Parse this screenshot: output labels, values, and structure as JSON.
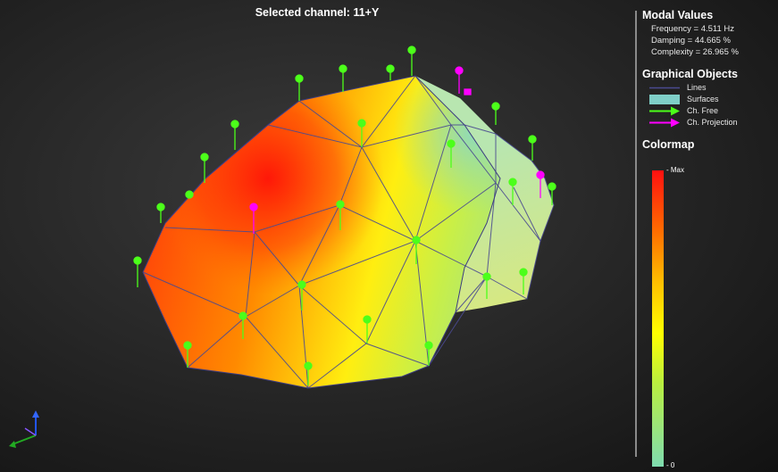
{
  "viewer": {
    "title": "Selected channel: 11+Y"
  },
  "modal_values": {
    "heading": "Modal Values",
    "frequency": "Frequency = 4.511 Hz",
    "damping": "Damping = 44.665 %",
    "complexity": "Complexity = 26.965 %"
  },
  "graphical_objects": {
    "heading": "Graphical Objects",
    "lines": "Lines",
    "surfaces": "Surfaces",
    "ch_free": "Ch. Free",
    "ch_projection": "Ch. Projection"
  },
  "colormap": {
    "heading": "Colormap",
    "max_label": "- Max",
    "min_label": "- 0"
  },
  "colors": {
    "ch_free": "#4cff1a",
    "ch_projection": "#ff00ff",
    "lines": "#4a4a90",
    "surface_legend": "#7fcfc8",
    "axis_x": "#22aa22",
    "axis_y": "#2255ff",
    "axis_z": "#8855ff"
  },
  "icons": {
    "ch_free": "green-arrow-icon",
    "ch_projection": "magenta-arrow-icon",
    "axis_triad": "xyz-axis-triad-icon"
  }
}
